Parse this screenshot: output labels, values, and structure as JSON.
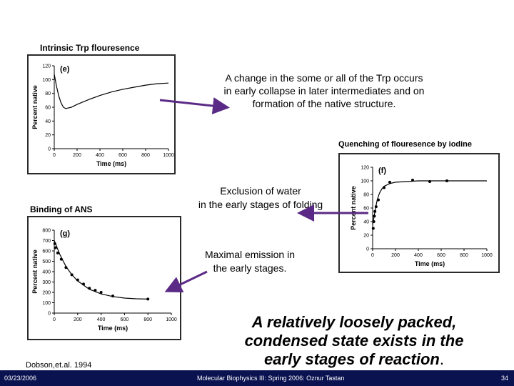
{
  "labels": {
    "trp": "Intrinsic Trp flouresence",
    "quench": "Quenching of flouresence by iodine",
    "ans": "Binding of ANS"
  },
  "notes": {
    "trp_note": "A change in the some or all of the Trp occurs in early collapse in later intermediates and on formation of the native structure.",
    "water_line1": "Exclusion of water",
    "water_line2": "in the early stages of folding",
    "emission_line1": "Maximal emission in",
    "emission_line2": "the early stages."
  },
  "conclusion": {
    "line1": "A relatively loosely packed,",
    "line2": "condensed state exists in the",
    "line3": "early stages of reaction",
    "period": "."
  },
  "citation": "Dobson,et.al. 1994",
  "footer": {
    "date": "03/23/2006",
    "course": "Molecular Biophysics III: Spring 2006: Oznur Tastan",
    "page": "34"
  },
  "colors": {
    "arrow": "#5b2a86",
    "footer_bg": "#0a1250"
  },
  "chart_data": [
    {
      "type": "line",
      "panel": "(e)",
      "xlabel": "Time (ms)",
      "ylabel": "Percent native",
      "xlim": [
        0,
        1000
      ],
      "ylim": [
        0,
        120
      ],
      "x_ticks": [
        "0",
        "200",
        "400",
        "600",
        "800",
        "1000"
      ],
      "y_ticks": [
        "0",
        "20",
        "40",
        "60",
        "80",
        "100",
        "120"
      ],
      "series": [
        {
          "x": [
            0,
            20,
            40,
            60,
            80,
            100,
            150,
            200,
            300,
            400,
            500,
            600,
            700,
            800,
            900,
            1000
          ],
          "y": [
            108,
            90,
            76,
            66,
            60,
            58,
            60,
            64,
            71,
            77,
            82,
            86,
            89,
            92,
            94,
            95
          ]
        }
      ]
    },
    {
      "type": "line",
      "panel": "(f)",
      "xlabel": "Time (ms)",
      "ylabel": "Percent native",
      "xlim": [
        0,
        1000
      ],
      "ylim": [
        0,
        120
      ],
      "x_ticks": [
        "0",
        "200",
        "400",
        "600",
        "800",
        "1000"
      ],
      "y_ticks": [
        "0",
        "20",
        "40",
        "60",
        "80",
        "100",
        "120"
      ],
      "series": [
        {
          "x": [
            0,
            10,
            20,
            30,
            40,
            60,
            80,
            100,
            150,
            200,
            300,
            400,
            600,
            800,
            1000
          ],
          "y": [
            35,
            45,
            55,
            64,
            72,
            82,
            88,
            92,
            96,
            98,
            99,
            100,
            100,
            100,
            100
          ]
        }
      ],
      "points": {
        "x": [
          5,
          10,
          15,
          20,
          30,
          50,
          100,
          150,
          350,
          500,
          650
        ],
        "y": [
          30,
          40,
          48,
          55,
          62,
          72,
          90,
          98,
          101,
          99,
          100
        ]
      }
    },
    {
      "type": "line",
      "panel": "(g)",
      "xlabel": "Time (ms)",
      "ylabel": "Percent native",
      "xlim": [
        0,
        1000
      ],
      "ylim": [
        0,
        800
      ],
      "x_ticks": [
        "0",
        "200",
        "400",
        "600",
        "800",
        "1000"
      ],
      "y_ticks": [
        "0",
        "100",
        "200",
        "300",
        "400",
        "500",
        "600",
        "700",
        "800"
      ],
      "series": [
        {
          "x": [
            0,
            50,
            100,
            150,
            200,
            300,
            400,
            500,
            600,
            700,
            800
          ],
          "y": [
            700,
            560,
            450,
            370,
            310,
            230,
            185,
            160,
            145,
            138,
            135
          ]
        }
      ],
      "points": {
        "x": [
          5,
          10,
          30,
          60,
          100,
          150,
          200,
          250,
          300,
          350,
          400,
          500,
          800
        ],
        "y": [
          670,
          630,
          580,
          520,
          440,
          370,
          320,
          280,
          240,
          220,
          200,
          165,
          135
        ]
      }
    }
  ]
}
